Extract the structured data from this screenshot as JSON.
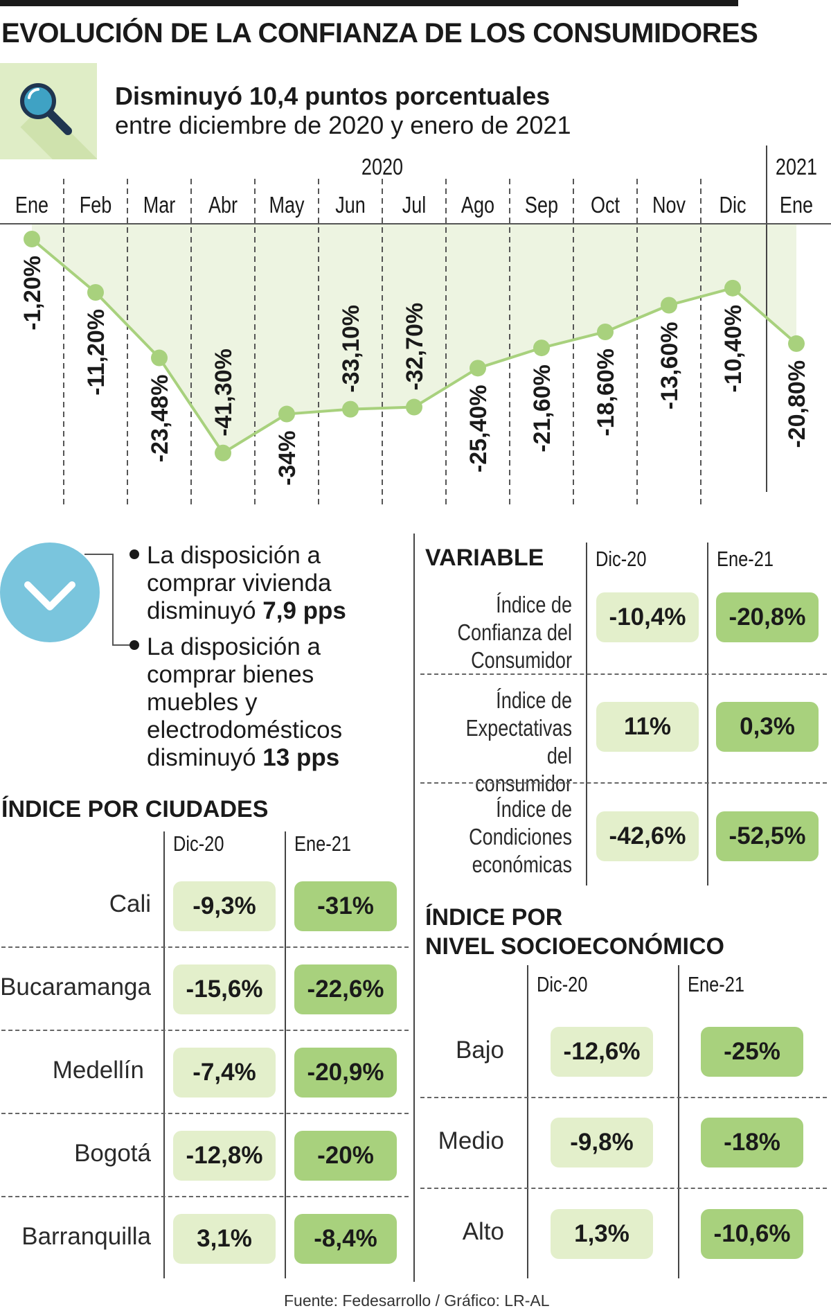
{
  "title": "EVOLUCIÓN DE LA CONFIANZA DE LOS CONSUMIDORES",
  "subtitle_bold": "Disminuyó 10,4 puntos porcentuales",
  "subtitle_regular": "entre diciembre de 2020 y enero de 2021",
  "icon": "magnifier-icon",
  "colors": {
    "line": "#a8d17d",
    "area": "#edf4e1",
    "pill_dic": "#e3efcb",
    "pill_ene": "#a8d17d",
    "circle": "#7ac5dd"
  },
  "chart_data": {
    "type": "area",
    "title": "Evolución de la confianza de los consumidores",
    "years": [
      "2020",
      "2021"
    ],
    "categories": [
      "Ene",
      "Feb",
      "Mar",
      "Abr",
      "May",
      "Jun",
      "Jul",
      "Ago",
      "Sep",
      "Oct",
      "Nov",
      "Dic",
      "Ene"
    ],
    "values": [
      -1.2,
      -11.2,
      -23.48,
      -41.3,
      -34,
      -33.1,
      -32.7,
      -25.4,
      -21.6,
      -18.6,
      -13.6,
      -10.4,
      -20.8
    ],
    "labels": [
      "-1,20%",
      "-11,20%",
      "-23,48%",
      "-41,30%",
      "-34%",
      "-33,10%",
      "-32,70%",
      "-25,40%",
      "-21,60%",
      "-18,60%",
      "-13,60%",
      "-10,40%",
      "-20,80%"
    ],
    "ylim": [
      -45,
      0
    ],
    "grid": true
  },
  "bullets": [
    {
      "text": "La disposición a comprar vivienda disminuyó ",
      "bold": "7,9 pps"
    },
    {
      "text": "La disposición a comprar bienes muebles y electrodomésticos disminuyó ",
      "bold": "13 pps"
    }
  ],
  "bullets_icon": "chevron-down-icon",
  "variables": {
    "heading": "VARIABLE",
    "col_dic": "Dic-20",
    "col_ene": "Ene-21",
    "rows": [
      {
        "label": "Índice de Confianza del Consumidor",
        "dic": "-10,4%",
        "ene": "-20,8%"
      },
      {
        "label": "Índice de Expectativas del consumidor",
        "dic": "11%",
        "ene": "0,3%"
      },
      {
        "label": "Índice de Condiciones económicas",
        "dic": "-42,6%",
        "ene": "-52,5%"
      }
    ]
  },
  "cities": {
    "heading": "ÍNDICE POR CIUDADES",
    "col_dic": "Dic-20",
    "col_ene": "Ene-21",
    "rows": [
      {
        "label": "Cali",
        "dic": "-9,3%",
        "ene": "-31%"
      },
      {
        "label": "Bucaramanga",
        "dic": "-15,6%",
        "ene": "-22,6%"
      },
      {
        "label": "Medellín",
        "dic": "-7,4%",
        "ene": "-20,9%"
      },
      {
        "label": "Bogotá",
        "dic": "-12,8%",
        "ene": "-20%"
      },
      {
        "label": "Barranquilla",
        "dic": "3,1%",
        "ene": "-8,4%"
      }
    ]
  },
  "socio": {
    "heading_line1": "ÍNDICE POR",
    "heading_line2": "NIVEL SOCIOECONÓMICO",
    "col_dic": "Dic-20",
    "col_ene": "Ene-21",
    "rows": [
      {
        "label": "Bajo",
        "dic": "-12,6%",
        "ene": "-25%"
      },
      {
        "label": "Medio",
        "dic": "-9,8%",
        "ene": "-18%"
      },
      {
        "label": "Alto",
        "dic": "1,3%",
        "ene": "-10,6%"
      }
    ]
  },
  "source": "Fuente: Fedesarrollo / Gráfico: LR-AL"
}
